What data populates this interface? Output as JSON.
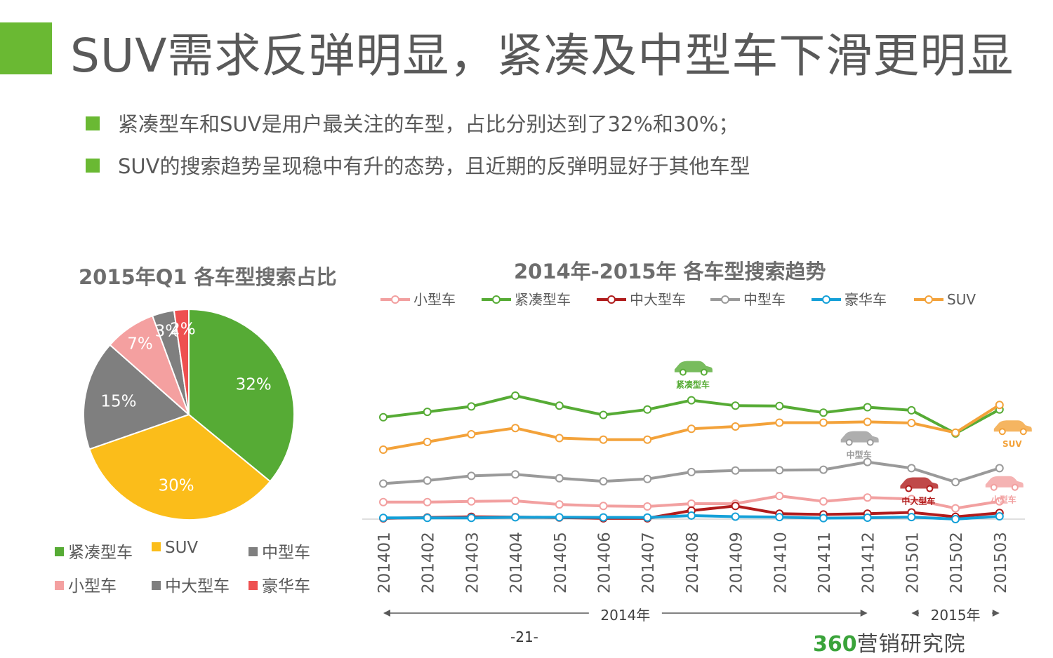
{
  "title": "SUV需求反弹明显，紧凑及中型车下滑更明显",
  "bullets": [
    "紧凑型车和SUV是用户最关注的车型，占比分别达到了32%和30%；",
    "SUV的搜索趋势呈现稳中有升的态势，且近期的反弹明显好于其他车型"
  ],
  "colors": {
    "accent": "#6ab933",
    "compact": "#56ab35",
    "suv": "#f3a23a",
    "midlarge": "#b01c1c",
    "mid": "#9a9a9a",
    "luxury": "#14a0d8",
    "small": "#f2a0a0"
  },
  "chart_data": [
    {
      "type": "pie",
      "title": "2015年Q1 各车型搜索占比",
      "slices": [
        {
          "name": "紧凑型车",
          "value": 32,
          "label": "32%",
          "color": "#56ab35"
        },
        {
          "name": "SUV",
          "value": 30,
          "label": "30%",
          "color": "#fbbd1a"
        },
        {
          "name": "中型车",
          "value": 15,
          "label": "15%",
          "color": "#7f7f7f"
        },
        {
          "name": "小型车",
          "value": 7,
          "label": "7%",
          "color": "#f4a0a0"
        },
        {
          "name": "中大型车",
          "value": 3,
          "label": "3%",
          "color": "#7f7f7f"
        },
        {
          "name": "豪华车",
          "value": 2,
          "label": "2%",
          "color": "#ee5050"
        }
      ],
      "legend_order": [
        "紧凑型车",
        "SUV",
        "中型车",
        "小型车",
        "中大型车",
        "豪华车"
      ]
    },
    {
      "type": "line",
      "title": "2014年-2015年 各车型搜索趋势",
      "categories": [
        "201401",
        "201402",
        "201403",
        "201404",
        "201405",
        "201406",
        "201407",
        "201408",
        "201409",
        "201410",
        "201411",
        "201412",
        "201501",
        "201502",
        "201503"
      ],
      "ylim": [
        0,
        100
      ],
      "y_axis_shown": false,
      "legend_position": "top",
      "series": [
        {
          "name": "小型车",
          "color": "#f2a0a0",
          "values": [
            11,
            11,
            11.5,
            11.8,
            9.5,
            8.5,
            8.2,
            10,
            10,
            15,
            11.5,
            14,
            13,
            7,
            11.5
          ]
        },
        {
          "name": "紧凑型车",
          "color": "#56ab35",
          "values": [
            66,
            69.5,
            73,
            80,
            73.5,
            67.5,
            71,
            77,
            73.5,
            73.3,
            69,
            72.5,
            70.5,
            55.5,
            71
          ]
        },
        {
          "name": "中大型车",
          "color": "#b01c1c",
          "values": [
            0.5,
            1,
            1.5,
            1.3,
            1,
            0.5,
            0.5,
            5.5,
            8.5,
            3.5,
            3,
            3.5,
            4.3,
            1.5,
            4
          ]
        },
        {
          "name": "中型车",
          "color": "#9a9a9a",
          "values": [
            23,
            25,
            28,
            29,
            26.5,
            24.5,
            26,
            30.5,
            31.5,
            31.7,
            32,
            37,
            33,
            24,
            33
          ]
        },
        {
          "name": "豪华车",
          "color": "#14a0d8",
          "values": [
            0.8,
            0.8,
            0.8,
            1.2,
            1.2,
            1.1,
            1,
            2.3,
            1.6,
            1.3,
            0.6,
            0.9,
            1.3,
            0,
            1.8
          ]
        },
        {
          "name": "SUV",
          "color": "#f3a23a",
          "values": [
            45,
            50,
            55,
            59,
            52.5,
            51.5,
            51.5,
            58.5,
            60,
            62.5,
            62.5,
            63,
            62.3,
            56,
            74
          ]
        }
      ],
      "annotations": [
        {
          "text": "紧凑型车",
          "category": "201408",
          "series": "紧凑型车",
          "color": "#56ab35"
        },
        {
          "text": "中型车",
          "category": "201412",
          "series": "中型车",
          "color": "#9a9a9a"
        },
        {
          "text": "SUV",
          "category": "201503",
          "series": "SUV",
          "color": "#f3a23a"
        },
        {
          "text": "中大型车",
          "category": "201501",
          "series": "中大型车",
          "color": "#b01c1c"
        },
        {
          "text": "小型车",
          "category": "201503",
          "series": "小型车",
          "color": "#f2a0a0"
        }
      ],
      "period_labels": [
        {
          "text": "2014年",
          "from": "201401",
          "to": "201412"
        },
        {
          "text": "2015年",
          "from": "201501",
          "to": "201503"
        }
      ]
    }
  ],
  "page_number": "-21-",
  "brand": {
    "logo_text": "360",
    "name": "营销研究院"
  }
}
